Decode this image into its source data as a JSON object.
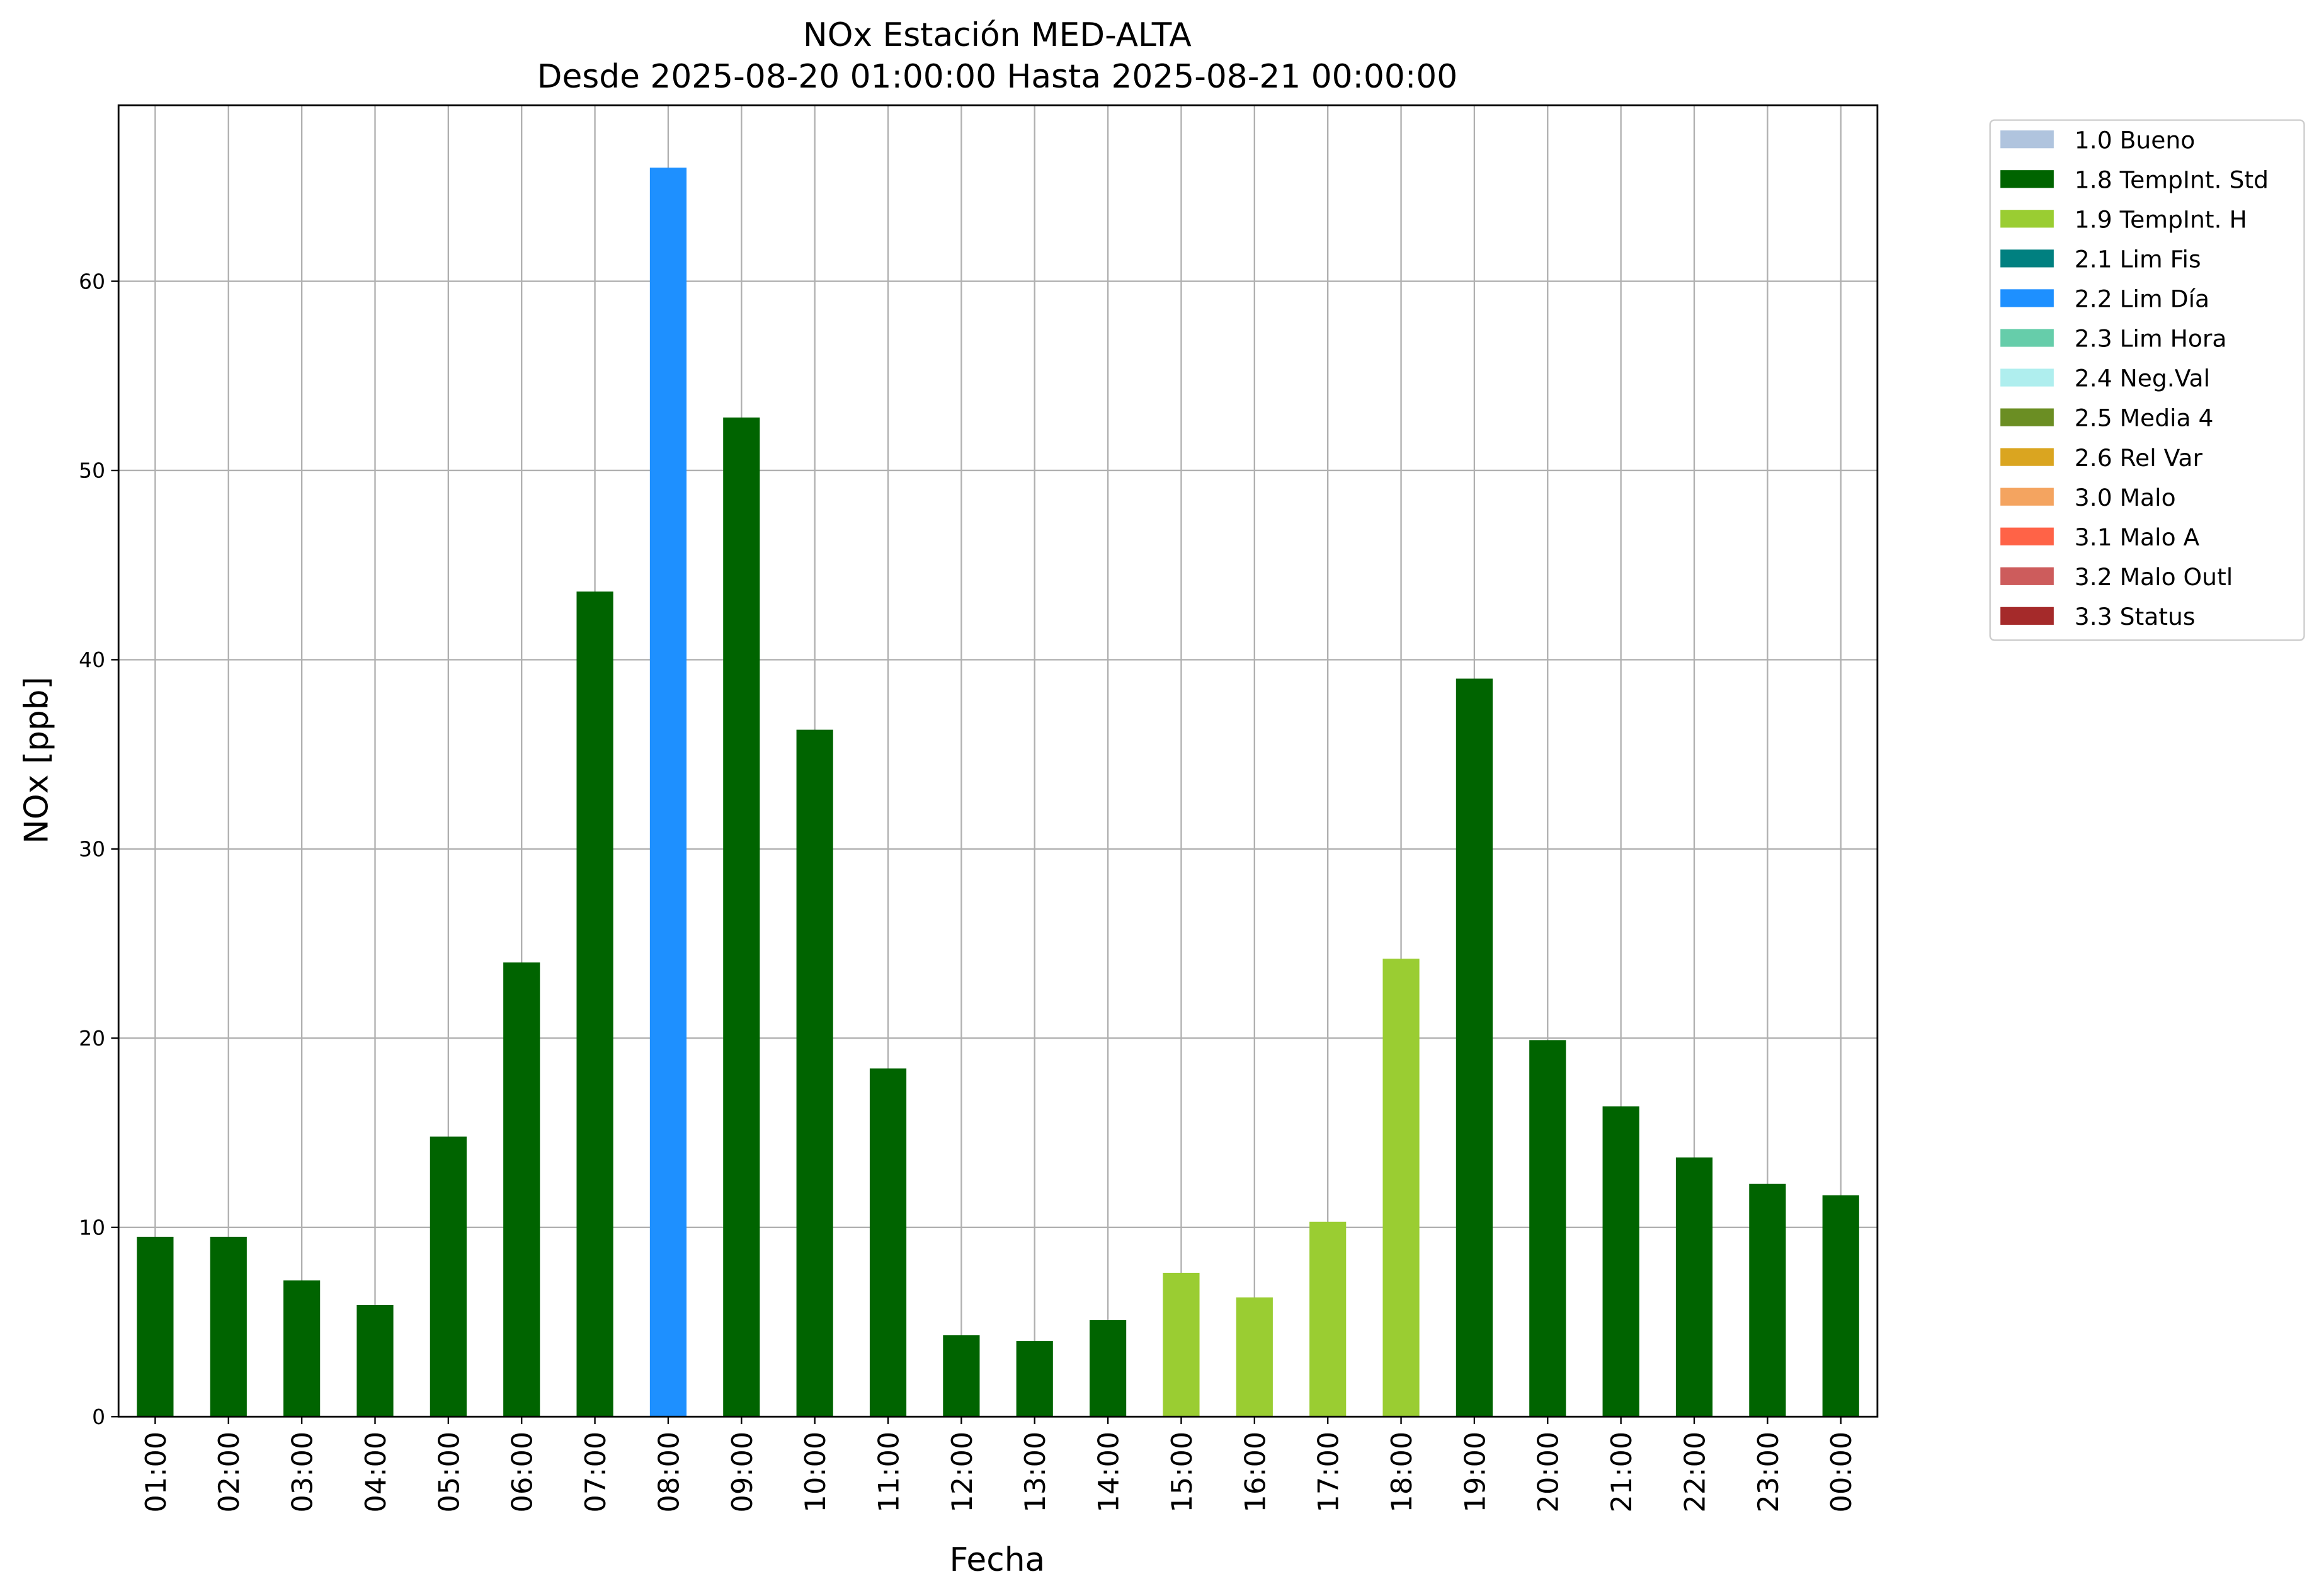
{
  "chart_data": {
    "type": "bar",
    "title": "NOx Estación MED-ALTA",
    "subtitle": "Desde 2025-08-20 01:00:00 Hasta 2025-08-21 00:00:00",
    "x_label": "Fecha",
    "y_label": "NOx [ppb]",
    "categories": [
      "01:00",
      "02:00",
      "03:00",
      "04:00",
      "05:00",
      "06:00",
      "07:00",
      "08:00",
      "09:00",
      "10:00",
      "11:00",
      "12:00",
      "13:00",
      "14:00",
      "15:00",
      "16:00",
      "17:00",
      "18:00",
      "19:00",
      "20:00",
      "21:00",
      "22:00",
      "23:00",
      "00:00"
    ],
    "values": [
      9.5,
      9.5,
      7.2,
      5.9,
      14.8,
      24.0,
      43.6,
      66.0,
      52.8,
      36.3,
      18.4,
      4.3,
      4.0,
      5.1,
      7.6,
      6.3,
      10.3,
      24.2,
      39.0,
      19.9,
      16.4,
      13.7,
      12.3,
      11.7
    ],
    "bar_colors": [
      "#006400",
      "#006400",
      "#006400",
      "#006400",
      "#006400",
      "#006400",
      "#006400",
      "#1e90ff",
      "#006400",
      "#006400",
      "#006400",
      "#006400",
      "#006400",
      "#006400",
      "#9acd32",
      "#9acd32",
      "#9acd32",
      "#9acd32",
      "#006400",
      "#006400",
      "#006400",
      "#006400",
      "#006400",
      "#006400"
    ],
    "legend": [
      {
        "name": "1.0 Bueno",
        "color": "#b0c4de"
      },
      {
        "name": "1.8 TempInt. Std",
        "color": "#006400"
      },
      {
        "name": "1.9 TempInt. H",
        "color": "#9acd32"
      },
      {
        "name": "2.1 Lim Fis",
        "color": "#008080"
      },
      {
        "name": "2.2 Lim Día",
        "color": "#1e90ff"
      },
      {
        "name": "2.3 Lim Hora",
        "color": "#66cdaa"
      },
      {
        "name": "2.4 Neg.Val",
        "color": "#afeeee"
      },
      {
        "name": "2.5 Media 4",
        "color": "#6b8e23"
      },
      {
        "name": "2.6 Rel Var",
        "color": "#daa520"
      },
      {
        "name": "3.0 Malo",
        "color": "#f4a460"
      },
      {
        "name": "3.1 Malo A",
        "color": "#ff6347"
      },
      {
        "name": "3.2 Malo Outl",
        "color": "#cd5c5c"
      },
      {
        "name": "3.3 Status",
        "color": "#a52a2a"
      }
    ],
    "ylim": [
      0,
      69.3
    ],
    "yticks": [
      0,
      10,
      20,
      30,
      40,
      50,
      60
    ],
    "grid": true
  }
}
